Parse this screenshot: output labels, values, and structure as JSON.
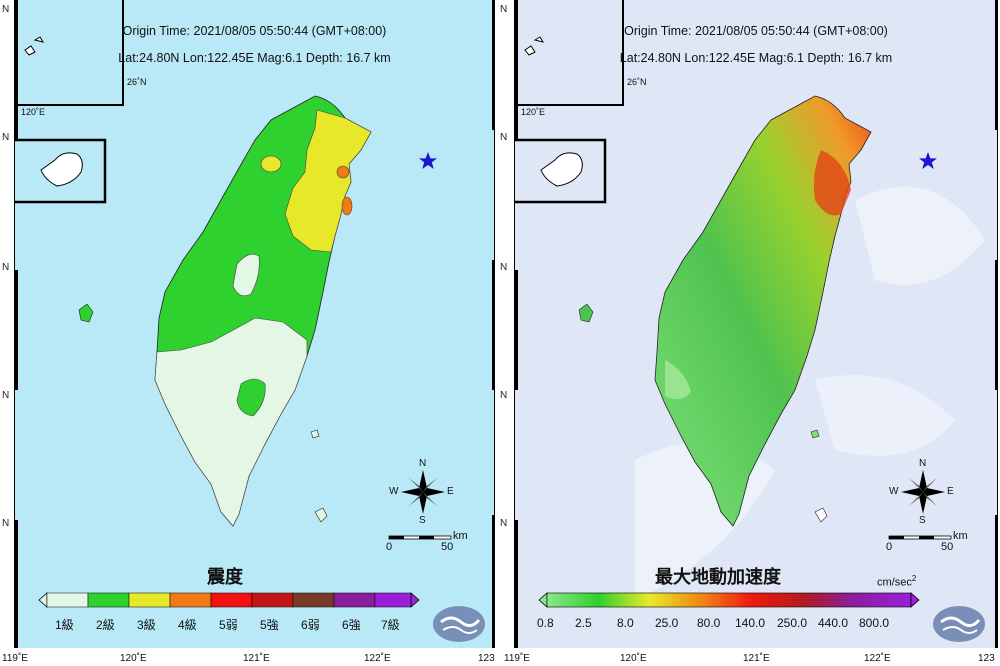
{
  "info": {
    "origin_time": "Origin Time: 2021/08/05  05:50:44  (GMT+08:00)",
    "params": "Lat:24.80N  Lon:122.45E  Mag:6.1  Depth: 16.7 km"
  },
  "left_map": {
    "title": "震度",
    "legend": [
      "1級",
      "2級",
      "3級",
      "4級",
      "5弱",
      "5強",
      "6弱",
      "6強",
      "7級"
    ],
    "legend_colors": [
      "#e4f6e4",
      "#2ed12e",
      "#e8e82a",
      "#f07a14",
      "#f21010",
      "#c21616",
      "#7a3a2a",
      "#8a1ea0",
      "#9a20d8"
    ]
  },
  "right_map": {
    "title": "最大地動加速度",
    "unit_base": "cm/sec",
    "unit_exp": "2",
    "legend": [
      "0.8",
      "2.5",
      "8.0",
      "25.0",
      "80.0",
      "140.0",
      "250.0",
      "440.0",
      "800.0"
    ]
  },
  "scale_bar": {
    "unit": "km",
    "start": "0",
    "end": "50"
  },
  "compass": {
    "n": "N",
    "s": "S",
    "e": "E",
    "w": "W"
  },
  "inset_lat": "26˚N",
  "inset_lon": "120˚E",
  "lat_tick": "N",
  "lon_axis": [
    "119˚E",
    "120˚E",
    "121˚E",
    "122˚E",
    "123"
  ],
  "colors": {
    "sea_left": "#b9e8f6",
    "sea_right": "#dfe7f6",
    "epicenter": "#1a1acc"
  }
}
